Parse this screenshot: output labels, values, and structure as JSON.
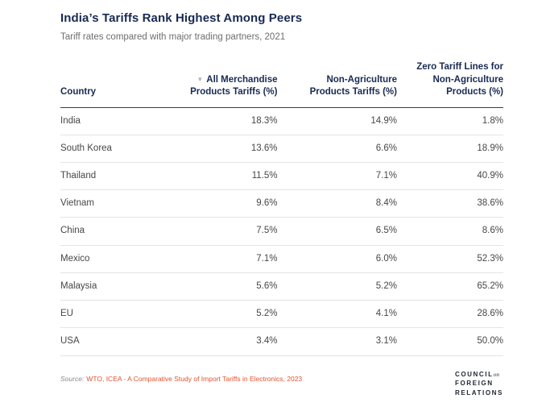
{
  "header": {
    "title": "India’s Tariffs Rank Highest Among Peers",
    "subtitle": "Tariff rates compared with major trading partners, 2021"
  },
  "table": {
    "columns": [
      {
        "label": "Country",
        "sorted": false
      },
      {
        "label": "All Merchandise\nProducts Tariffs (%)",
        "sorted": true,
        "sort_icon": "▼"
      },
      {
        "label": "Non-Agriculture\nProducts Tariffs (%)",
        "sorted": false
      },
      {
        "label": "Zero Tariff Lines for\nNon-Agriculture\nProducts (%)",
        "sorted": false
      }
    ],
    "rows": [
      {
        "country": "India",
        "all_merchandise": "18.3%",
        "non_agriculture": "14.9%",
        "zero_tariff": "1.8%"
      },
      {
        "country": "South Korea",
        "all_merchandise": "13.6%",
        "non_agriculture": "6.6%",
        "zero_tariff": "18.9%"
      },
      {
        "country": "Thailand",
        "all_merchandise": "11.5%",
        "non_agriculture": "7.1%",
        "zero_tariff": "40.9%"
      },
      {
        "country": "Vietnam",
        "all_merchandise": "9.6%",
        "non_agriculture": "8.4%",
        "zero_tariff": "38.6%"
      },
      {
        "country": "China",
        "all_merchandise": "7.5%",
        "non_agriculture": "6.5%",
        "zero_tariff": "8.6%"
      },
      {
        "country": "Mexico",
        "all_merchandise": "7.1%",
        "non_agriculture": "6.0%",
        "zero_tariff": "52.3%"
      },
      {
        "country": "Malaysia",
        "all_merchandise": "5.6%",
        "non_agriculture": "5.2%",
        "zero_tariff": "65.2%"
      },
      {
        "country": "EU",
        "all_merchandise": "5.2%",
        "non_agriculture": "4.1%",
        "zero_tariff": "28.6%"
      },
      {
        "country": "USA",
        "all_merchandise": "3.4%",
        "non_agriculture": "3.1%",
        "zero_tariff": "50.0%"
      }
    ]
  },
  "footer": {
    "source_prefix": "Source:",
    "source_link": "WTO, ICEA - A Comparative Study of Import Tariffs in Electronics, 2023",
    "logo": {
      "line1": "COUNCIL",
      "on": "on",
      "line2": "FOREIGN",
      "line3": "RELATIONS"
    }
  },
  "colors": {
    "title_navy": "#182a52",
    "body_text": "#474747",
    "subtitle_gray": "#6e6e6e",
    "source_orange": "#e0532f",
    "header_rule": "#3c3c3c",
    "row_rule": "#e4e4e4"
  },
  "chart_data": {
    "type": "table",
    "title": "India’s Tariffs Rank Highest Among Peers",
    "subtitle": "Tariff rates compared with major trading partners, 2021",
    "columns": [
      "Country",
      "All Merchandise Products Tariffs (%)",
      "Non-Agriculture Products Tariffs (%)",
      "Zero Tariff Lines for Non-Agriculture Products (%)"
    ],
    "sorted_by": "All Merchandise Products Tariffs (%)",
    "sort_order": "descending",
    "rows": [
      [
        "India",
        18.3,
        14.9,
        1.8
      ],
      [
        "South Korea",
        13.6,
        6.6,
        18.9
      ],
      [
        "Thailand",
        11.5,
        7.1,
        40.9
      ],
      [
        "Vietnam",
        9.6,
        8.4,
        38.6
      ],
      [
        "China",
        7.5,
        6.5,
        8.6
      ],
      [
        "Mexico",
        7.1,
        6.0,
        52.3
      ],
      [
        "Malaysia",
        5.6,
        5.2,
        65.2
      ],
      [
        "EU",
        5.2,
        4.1,
        28.6
      ],
      [
        "USA",
        3.4,
        3.1,
        50.0
      ]
    ],
    "source": "WTO, ICEA - A Comparative Study of Import Tariffs in Electronics, 2023"
  }
}
